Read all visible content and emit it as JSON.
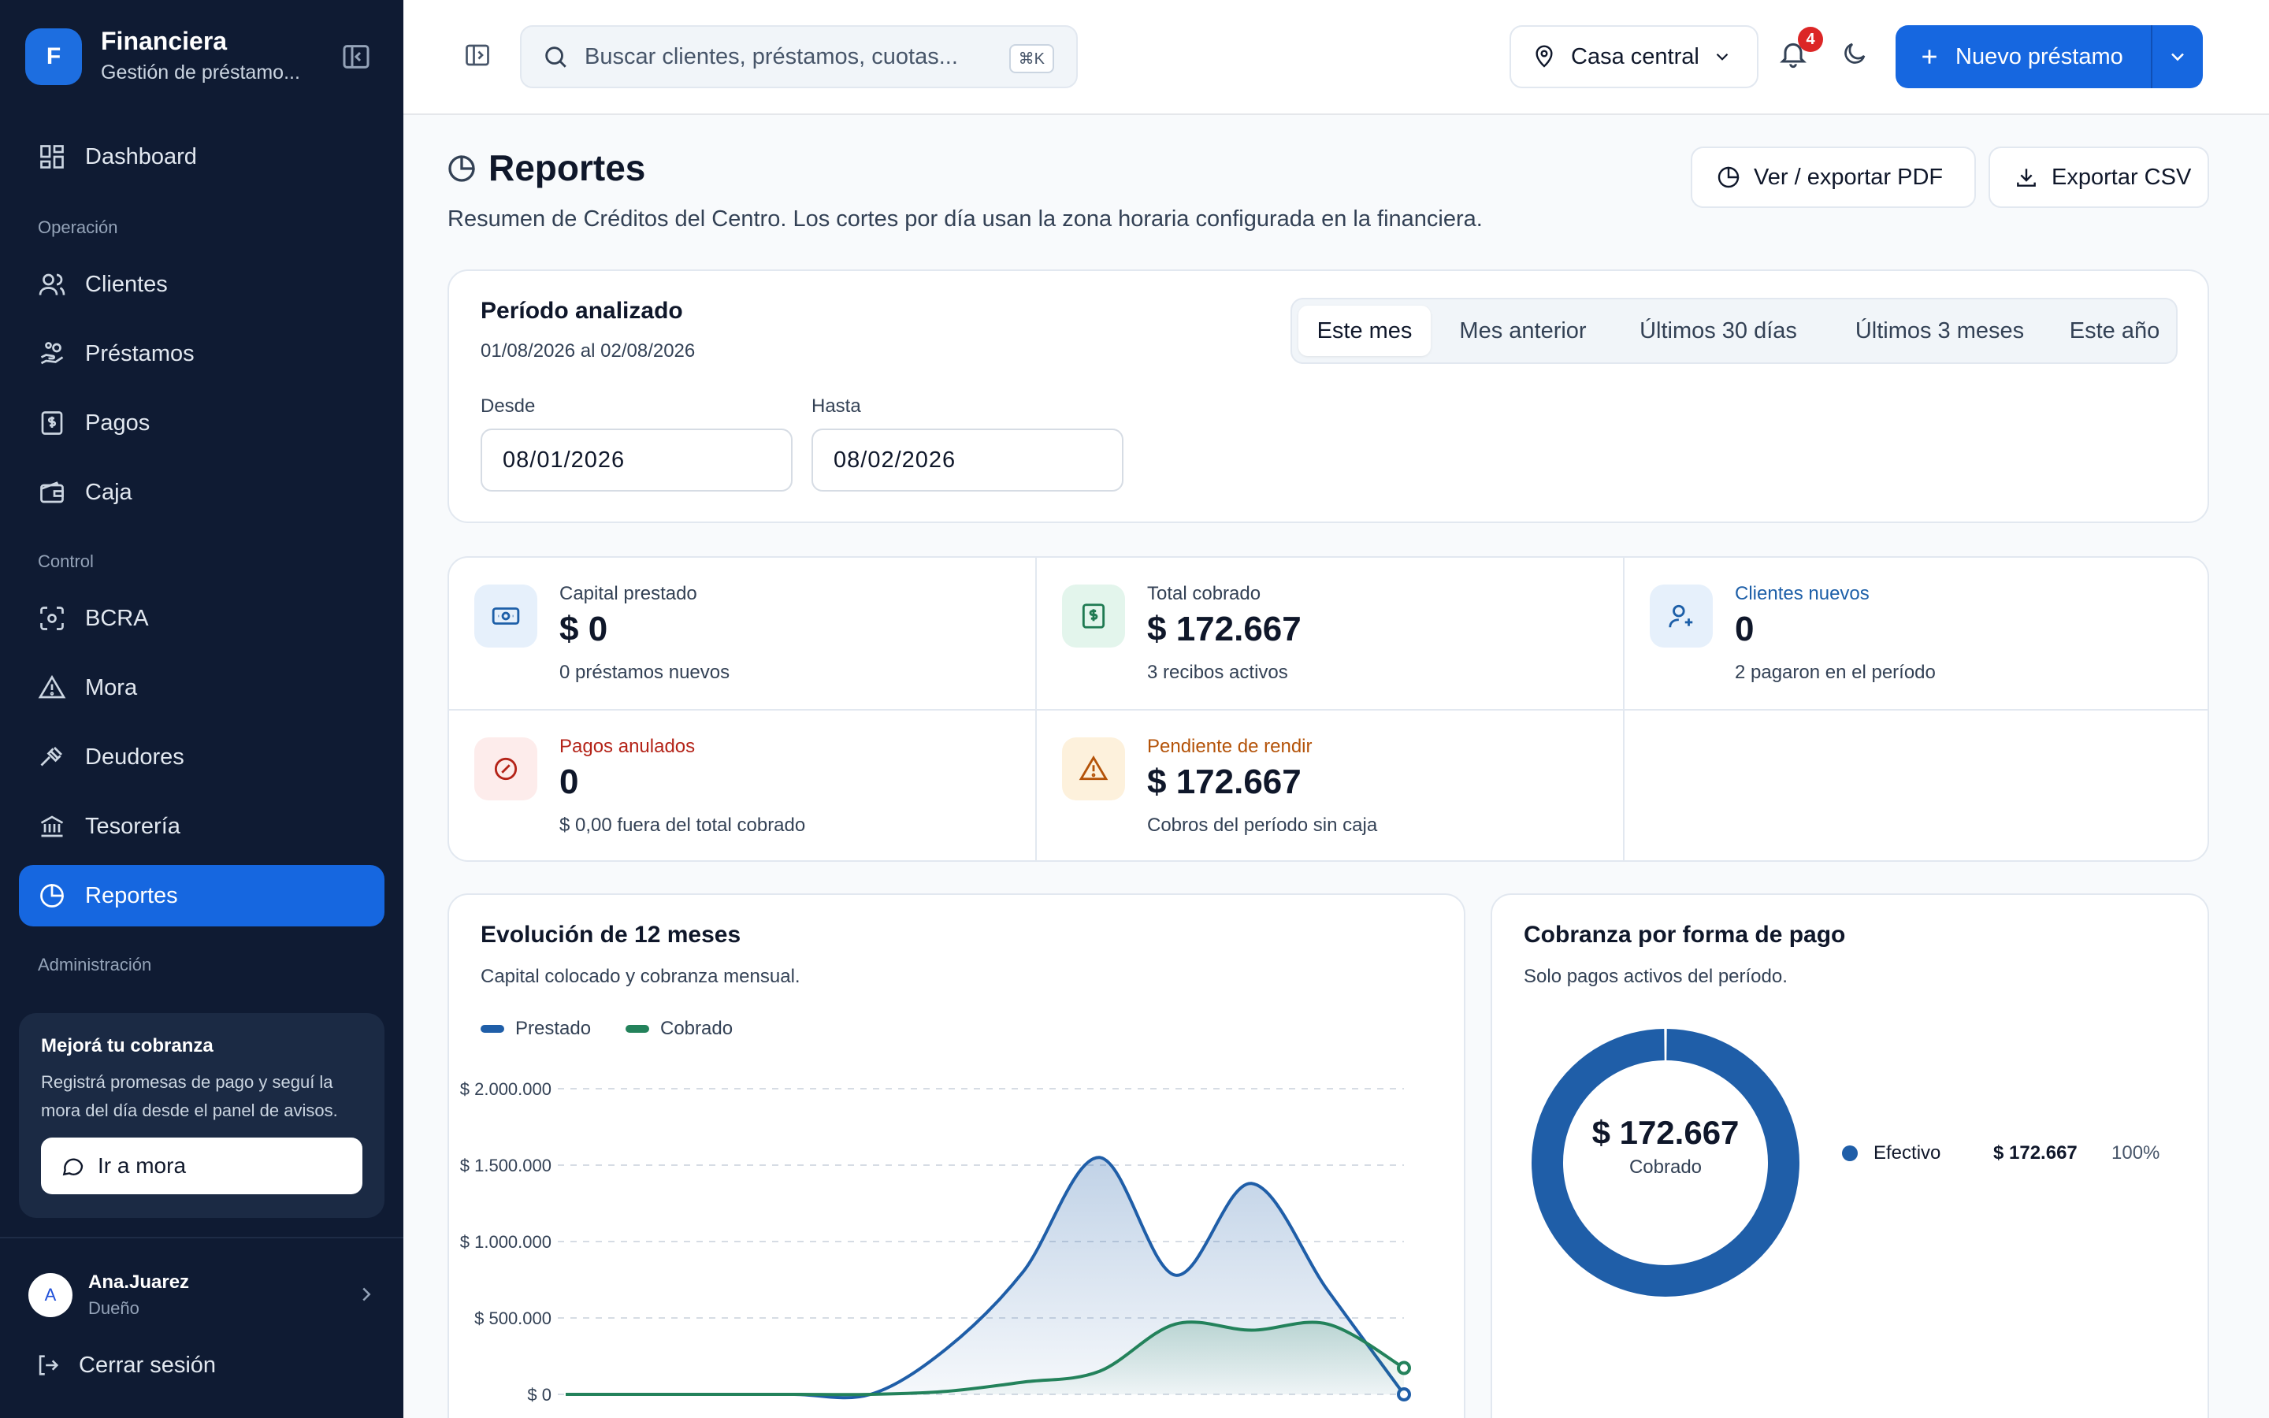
{
  "brand": {
    "initial": "F",
    "name": "Financiera",
    "subtitle": "Gestión de préstamo..."
  },
  "nav": {
    "dashboard": "Dashboard",
    "section_operacion": "Operación",
    "clientes": "Clientes",
    "prestamos": "Préstamos",
    "pagos": "Pagos",
    "caja": "Caja",
    "section_control": "Control",
    "bcra": "BCRA",
    "mora": "Mora",
    "deudores": "Deudores",
    "tesoreria": "Tesorería",
    "reportes": "Reportes",
    "section_admin": "Administración"
  },
  "promo": {
    "title": "Mejorá tu cobranza",
    "text": "Registrá promesas de pago y seguí la mora del día desde el panel de avisos.",
    "button": "Ir a mora"
  },
  "user": {
    "initial": "A",
    "name": "Ana.Juarez",
    "role": "Dueño",
    "logout": "Cerrar sesión"
  },
  "header": {
    "search_placeholder": "Buscar clientes, préstamos, cuotas...",
    "search_shortcut": "⌘K",
    "branch": "Casa central",
    "notifications_count": "4",
    "new_loan": "Nuevo préstamo"
  },
  "page": {
    "title": "Reportes",
    "subtitle": "Resumen de Créditos del Centro. Los cortes por día usan la zona horaria configurada en la financiera.",
    "export_pdf": "Ver / exportar PDF",
    "export_csv": "Exportar CSV"
  },
  "period": {
    "title": "Período analizado",
    "range": "01/08/2026 al 02/08/2026",
    "from_label": "Desde",
    "from_value": "08/01/2026",
    "to_label": "Hasta",
    "to_value": "08/02/2026",
    "tabs": [
      "Este mes",
      "Mes anterior",
      "Últimos 30 días",
      "Últimos 3 meses",
      "Este año"
    ],
    "active_tab": 0
  },
  "stats": [
    {
      "label": "Capital prestado",
      "value": "$ 0",
      "note": "0 préstamos nuevos",
      "label_color": "#334155",
      "icon": "banknote-icon"
    },
    {
      "label": "Total cobrado",
      "value": "$ 172.667",
      "note": "3 recibos activos",
      "label_color": "#334155",
      "icon": "receipt-dollar-icon"
    },
    {
      "label": "Clientes nuevos",
      "value": "0",
      "note": "2 pagaron en el período",
      "label_color": "#1d5fa8",
      "icon": "user-plus-icon"
    },
    {
      "label": "Pagos anulados",
      "value": "0",
      "note": "$ 0,00 fuera del total cobrado",
      "label_color": "#b42318",
      "icon": "ban-icon"
    },
    {
      "label": "Pendiente de rendir",
      "value": "$ 172.667",
      "note": "Cobros del período sin caja",
      "label_color": "#b45309",
      "icon": "warning-icon"
    }
  ],
  "evolution": {
    "title": "Evolución de 12 meses",
    "subtitle": "Capital colocado y cobranza mensual.",
    "legend_prestado": "Prestado",
    "legend_cobrado": "Cobrado"
  },
  "chart_data": [
    {
      "type": "area",
      "title": "Evolución de 12 meses",
      "y_ticks": [
        "$ 2.000.000",
        "$ 1.500.000",
        "$ 1.000.000",
        "$ 500.000",
        "$ 0"
      ],
      "ylim": [
        0,
        2000000
      ],
      "grid": true,
      "legend": "top-left",
      "x": [
        0,
        1,
        2,
        3,
        4,
        5,
        6,
        7,
        8,
        9,
        10,
        11
      ],
      "series": [
        {
          "name": "Prestado",
          "color": "#1f5ea8",
          "values": [
            0,
            0,
            0,
            0,
            0,
            300000,
            800000,
            1550000,
            780000,
            1380000,
            680000,
            0
          ]
        },
        {
          "name": "Cobrado",
          "color": "#23825b",
          "values": [
            0,
            0,
            0,
            0,
            0,
            20000,
            80000,
            150000,
            460000,
            420000,
            460000,
            172667
          ]
        }
      ]
    },
    {
      "type": "pie",
      "title": "Cobranza por forma de pago",
      "subtitle": "Solo pagos activos del período.",
      "center_value": "$ 172.667",
      "center_label": "Cobrado",
      "slices": [
        {
          "name": "Efectivo",
          "value": 172667,
          "amount": "$ 172.667",
          "percent": "100%",
          "color": "#1f5ea8"
        }
      ]
    }
  ],
  "colors": {
    "accent": "#1667e0",
    "sidebar": "#0f1b33",
    "prestado": "#1f5ea8",
    "cobrado": "#23825b"
  }
}
